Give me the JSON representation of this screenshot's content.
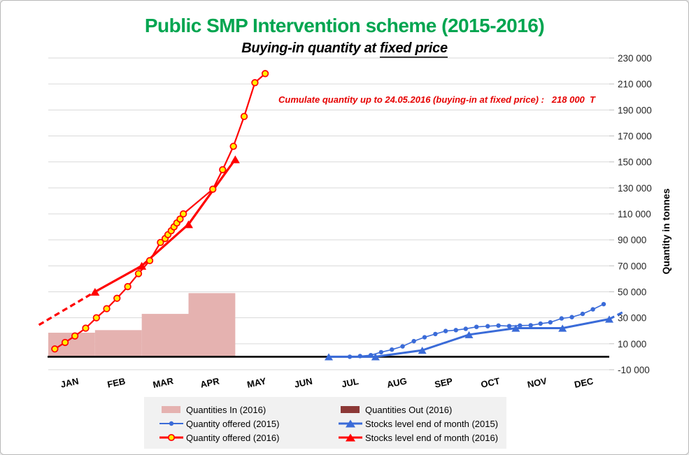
{
  "page": {
    "background": "#FFFFFF",
    "border_color": "#B8B8B8"
  },
  "colors": {
    "title_green": "#00A550",
    "annotation_red": "#E60000",
    "red": "#FF0000",
    "blue": "#3A6BD8",
    "pink": "#E5B2B0",
    "dark_red": "#8C3836",
    "marker_yellow": "#FFEE00",
    "grid": "#DADADA",
    "tick": "#BFBFBF",
    "ytick_text": "#262626",
    "legend_bg": "#F1F1F1"
  },
  "chart_data": {
    "type": "line",
    "title": "Public SMP Intervention scheme (2015-2016)",
    "subtitle_plain": "Buying-in quantity at ",
    "subtitle_underlined": "fixed price",
    "annotation": "Cumulate quantity up to 24.05.2016 (buying-in at fixed price) :   218 000  T",
    "ylabel": "Quantity in tonnes",
    "x_categories": [
      "JAN",
      "FEB",
      "MAR",
      "APR",
      "MAY",
      "JUN",
      "JUL",
      "AUG",
      "SEP",
      "OCT",
      "NOV",
      "DEC"
    ],
    "y_axis": {
      "min": -10000,
      "max": 230000,
      "step": 20000,
      "tick_labels": [
        "230 000",
        "210 000",
        "190 000",
        "170 000",
        "150 000",
        "130 000",
        "110 000",
        "90 000",
        "70 000",
        "50 000",
        "30 000",
        "10 000",
        "-10 000"
      ]
    },
    "bars": {
      "quantities_in": {
        "name": "Quantities In (2016)",
        "color": "#E5B2B0",
        "months": [
          "JAN",
          "FEB",
          "MAR",
          "APR"
        ],
        "values": [
          18500,
          20500,
          33000,
          49000
        ]
      },
      "quantities_out": {
        "name": "Quantities Out (2016)",
        "color": "#8C3836",
        "months": [],
        "values": []
      }
    },
    "series": [
      {
        "id": "quantity_offered_2015",
        "name": "Quantity offered (2015)",
        "color": "#3A6BD8",
        "width": 1.6,
        "marker": "dot",
        "points": [
          [
            6.45,
            0
          ],
          [
            6.67,
            500
          ],
          [
            6.9,
            1200
          ],
          [
            7.12,
            3500
          ],
          [
            7.35,
            5500
          ],
          [
            7.58,
            8000
          ],
          [
            7.82,
            12000
          ],
          [
            8.05,
            15000
          ],
          [
            8.28,
            17500
          ],
          [
            8.5,
            19800
          ],
          [
            8.72,
            20500
          ],
          [
            8.93,
            21500
          ],
          [
            9.16,
            23000
          ],
          [
            9.4,
            23500
          ],
          [
            9.63,
            24000
          ],
          [
            9.86,
            23600
          ],
          [
            10.09,
            24000
          ],
          [
            10.32,
            24200
          ],
          [
            10.53,
            25500
          ],
          [
            10.74,
            26500
          ],
          [
            10.98,
            29500
          ],
          [
            11.2,
            30500
          ],
          [
            11.43,
            33000
          ],
          [
            11.65,
            36500
          ],
          [
            11.88,
            40500
          ]
        ]
      },
      {
        "id": "stocks_level_2015",
        "name": "Stocks level end of month (2015)",
        "color": "#3A6BD8",
        "width": 3,
        "marker": "triangle",
        "marker_size": 6,
        "points": [
          [
            6,
            0
          ],
          [
            7,
            0
          ],
          [
            8,
            5000
          ],
          [
            9,
            17000
          ],
          [
            10,
            22000
          ],
          [
            11,
            22000
          ],
          [
            12,
            29000
          ]
        ],
        "dashed_tail": [
          [
            12,
            29000
          ],
          [
            12.3,
            34500
          ]
        ]
      },
      {
        "id": "stocks_level_2016",
        "name": "Stocks level end of month (2016)",
        "color": "#FF0000",
        "width": 3.2,
        "marker": "triangle",
        "marker_size": 6.5,
        "dashed_lead": [
          [
            -0.2,
            24500
          ],
          [
            1,
            50000
          ]
        ],
        "points": [
          [
            1,
            50000
          ],
          [
            2,
            70000
          ],
          [
            3,
            102000
          ],
          [
            4,
            152000
          ]
        ]
      },
      {
        "id": "quantity_offered_2016",
        "name": "Quantity offered (2016)",
        "color": "#FF0000",
        "width": 2.2,
        "marker": "circle",
        "marker_fill": "#FFEE00",
        "points": [
          [
            0.14,
            6000
          ],
          [
            0.36,
            11000
          ],
          [
            0.57,
            16000
          ],
          [
            0.8,
            22000
          ],
          [
            1.03,
            30000
          ],
          [
            1.25,
            37000
          ],
          [
            1.47,
            45000
          ],
          [
            1.7,
            54000
          ],
          [
            1.93,
            64000
          ],
          [
            2.17,
            74000
          ],
          [
            2.4,
            88000
          ],
          [
            2.5,
            91000
          ],
          [
            2.56,
            94000
          ],
          [
            2.63,
            97000
          ],
          [
            2.69,
            100000
          ],
          [
            2.75,
            103000
          ],
          [
            2.82,
            106000
          ],
          [
            2.89,
            110000
          ],
          [
            3.52,
            129000
          ],
          [
            3.73,
            144000
          ],
          [
            3.96,
            162000
          ],
          [
            4.19,
            185000
          ],
          [
            4.42,
            211000
          ],
          [
            4.64,
            218000
          ]
        ]
      }
    ]
  },
  "legend": {
    "items": [
      {
        "label": "Quantities In (2016)",
        "marker": "swatch",
        "color": "#E5B2B0"
      },
      {
        "label": "Quantities Out (2016)",
        "marker": "swatch",
        "color": "#8C3836"
      },
      {
        "label": "Quantity offered (2015)",
        "marker": "line-dot",
        "color": "#3A6BD8"
      },
      {
        "label": "Stocks level end of month (2015)",
        "marker": "line-triangle",
        "color": "#3A6BD8"
      },
      {
        "label": "Quantity offered (2016)",
        "marker": "line-circle",
        "color": "#FF0000",
        "fill": "#FFEE00"
      },
      {
        "label": "Stocks level end of month (2016)",
        "marker": "line-triangle",
        "color": "#FF0000"
      }
    ]
  }
}
